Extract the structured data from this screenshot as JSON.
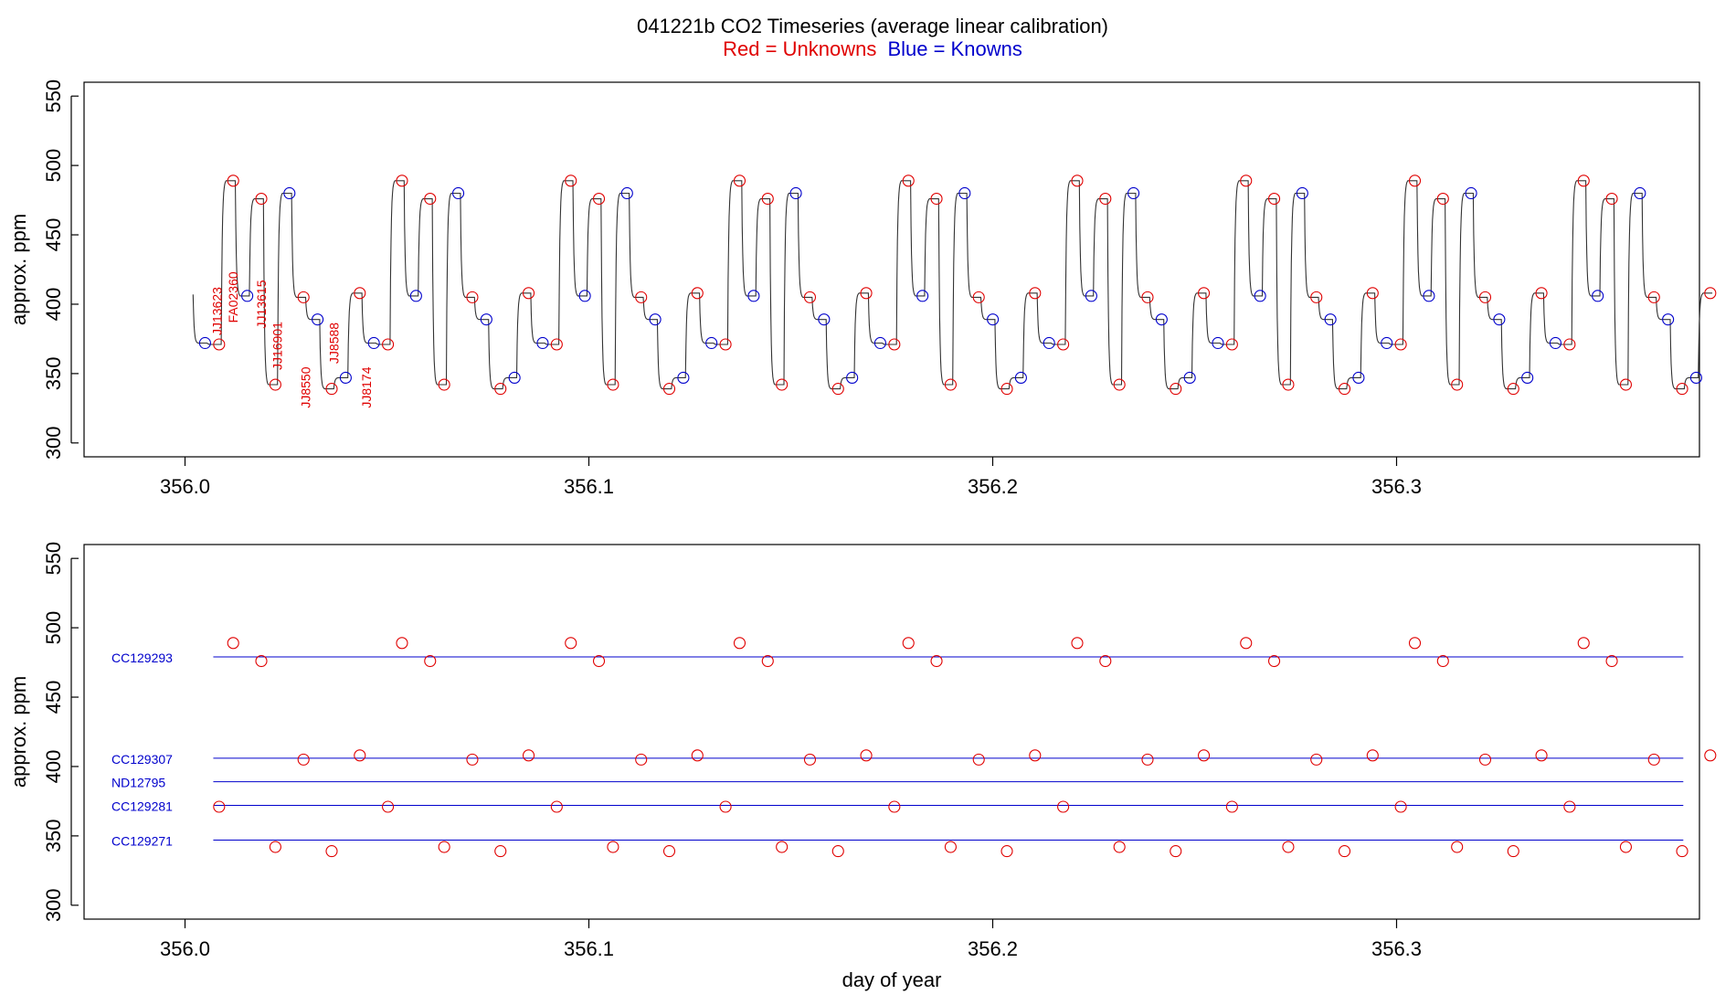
{
  "title": "041221b   CO2 Timeseries (average linear calibration)",
  "subtitle_unknowns": "Red = Unknowns",
  "subtitle_knowns": "Blue = Knowns",
  "colors": {
    "unknown": "#e00000",
    "known": "#0000cc",
    "trace": "#333333",
    "frame": "#000000"
  },
  "chart_data": [
    {
      "type": "line",
      "name": "top-panel",
      "title": "041221b   CO2 Timeseries (average linear calibration)",
      "xlabel": "",
      "ylabel": "approx. ppm",
      "xlim": [
        355.975,
        356.375
      ],
      "ylim": [
        290,
        560
      ],
      "xticks": [
        356.0,
        356.1,
        356.2,
        356.3
      ],
      "xtick_labels": [
        "356.0",
        "356.1",
        "356.2",
        "356.3"
      ],
      "yticks": [
        300,
        350,
        400,
        450,
        500,
        550
      ],
      "ytick_labels": [
        "300",
        "350",
        "400",
        "450",
        "500",
        "550"
      ],
      "grid": false,
      "cycle": {
        "start": 356.002,
        "period": 0.0418,
        "initial_level": 407,
        "sequence": [
          {
            "label": "CC129281",
            "ppm": 372,
            "kind": "known"
          },
          {
            "label": "JJ13623",
            "ppm": 371,
            "kind": "unknown"
          },
          {
            "label": "FA02360",
            "ppm": 489,
            "kind": "unknown"
          },
          {
            "label": "CC129307",
            "ppm": 406,
            "kind": "known"
          },
          {
            "label": "JJ13615",
            "ppm": 476,
            "kind": "unknown"
          },
          {
            "label": "JJ16901",
            "ppm": 342,
            "kind": "unknown"
          },
          {
            "label": "CC129293",
            "ppm": 480,
            "kind": "known"
          },
          {
            "label": "JJ8550",
            "ppm": 405,
            "kind": "unknown"
          },
          {
            "label": "ND12795",
            "ppm": 389,
            "kind": "known"
          },
          {
            "label": "JJ8588",
            "ppm": 339,
            "kind": "unknown"
          },
          {
            "label": "CC129271",
            "ppm": 347,
            "kind": "known"
          },
          {
            "label": "JJ8174",
            "ppm": 408,
            "kind": "unknown"
          }
        ],
        "repeats": 9
      },
      "sample_labels": [
        {
          "text": "JJ13623",
          "x": 356.009,
          "y": 395
        },
        {
          "text": "FA02360",
          "x": 356.013,
          "y": 405
        },
        {
          "text": "JJ13615",
          "x": 356.02,
          "y": 400
        },
        {
          "text": "JJ16901",
          "x": 356.024,
          "y": 370
        },
        {
          "text": "JJ8550",
          "x": 356.031,
          "y": 340
        },
        {
          "text": "JJ8588",
          "x": 356.038,
          "y": 372
        },
        {
          "text": "JJ8174",
          "x": 356.046,
          "y": 340
        }
      ]
    },
    {
      "type": "scatter",
      "name": "bottom-panel",
      "xlabel": "day of year",
      "ylabel": "approx. ppm",
      "xlim": [
        355.975,
        356.375
      ],
      "ylim": [
        290,
        560
      ],
      "xticks": [
        356.0,
        356.1,
        356.2,
        356.3
      ],
      "xtick_labels": [
        "356.0",
        "356.1",
        "356.2",
        "356.3"
      ],
      "yticks": [
        300,
        350,
        400,
        450,
        500,
        550
      ],
      "ytick_labels": [
        "300",
        "350",
        "400",
        "450",
        "500",
        "550"
      ],
      "grid": false,
      "reference_lines": [
        {
          "label": "CC129293",
          "ppm": 479
        },
        {
          "label": "CC129307",
          "ppm": 406
        },
        {
          "label": "ND12795",
          "ppm": 389
        },
        {
          "label": "CC129281",
          "ppm": 372
        },
        {
          "label": "CC129271",
          "ppm": 347
        }
      ],
      "line_x_range": [
        356.007,
        356.371
      ]
    }
  ]
}
